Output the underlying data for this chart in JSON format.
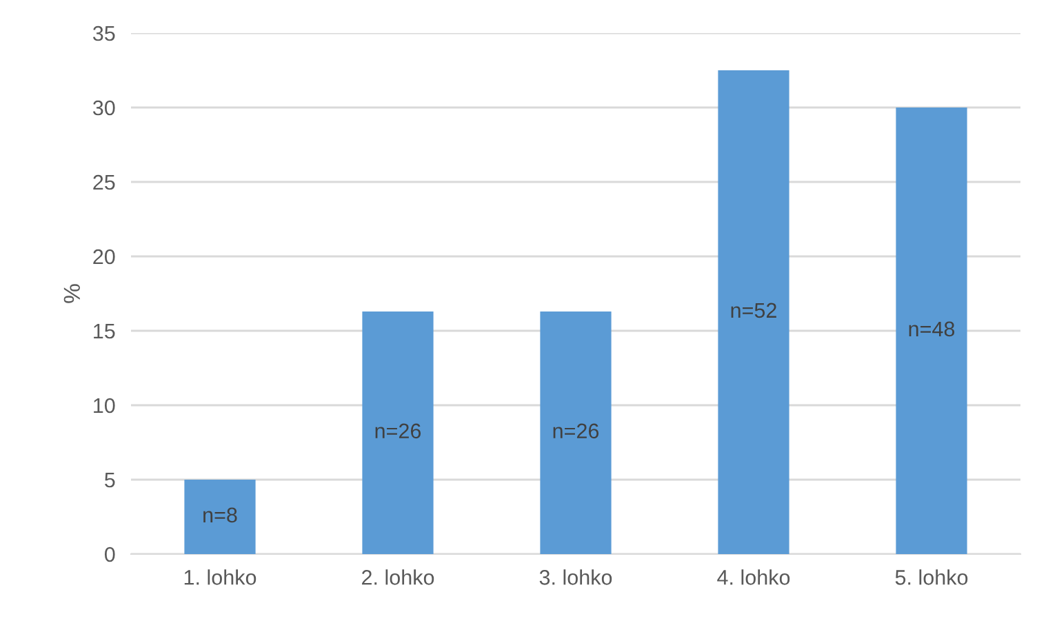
{
  "chart_data": {
    "type": "bar",
    "ylabel": "%",
    "categories": [
      "1. lohko",
      "2. lohko",
      "3. lohko",
      "4. lohko",
      "5. lohko"
    ],
    "values": [
      5,
      16.3,
      16.3,
      32.5,
      30
    ],
    "annotations": [
      "n=8",
      "n=26",
      "n=26",
      "n=52",
      "n=48"
    ],
    "color": "#5b9bd5",
    "ylim": [
      0,
      35
    ],
    "yticks": [
      0,
      5,
      10,
      15,
      20,
      25,
      30,
      35
    ],
    "grid": "y"
  }
}
